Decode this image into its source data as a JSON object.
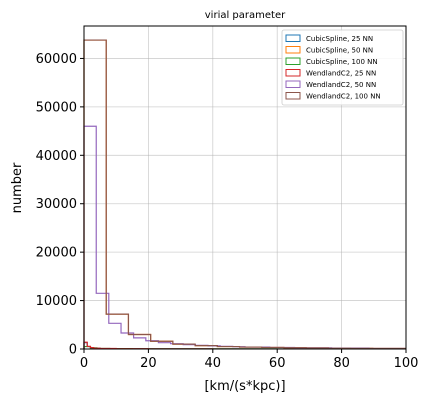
{
  "chart_data": {
    "type": "line",
    "title": "virial parameter",
    "xlabel": "[km/(s*kpc)]",
    "ylabel": "number",
    "xlim": [
      0,
      100
    ],
    "ylim": [
      0,
      66700
    ],
    "xticks": [
      0,
      20,
      40,
      60,
      80,
      100
    ],
    "yticks": [
      0,
      10000,
      20000,
      30000,
      40000,
      50000,
      60000
    ],
    "grid": true,
    "legend_position": "top-right",
    "series": [
      {
        "name": "CubicSpline, 25 NN",
        "color": "#1f77b4",
        "edges": [
          0,
          1,
          2,
          3,
          5,
          10,
          20,
          40,
          70,
          100
        ],
        "counts": [
          1300,
          500,
          250,
          150,
          90,
          50,
          30,
          15,
          8
        ]
      },
      {
        "name": "CubicSpline, 50 NN",
        "color": "#ff7f0e",
        "edges": [
          0,
          6.9,
          13.8,
          20.7,
          27.6,
          34.5,
          41.4,
          48.3,
          55.2,
          62.1,
          69,
          75.9,
          82.8,
          89.7,
          100
        ],
        "counts": [
          63800,
          7200,
          3000,
          1600,
          1000,
          700,
          500,
          400,
          320,
          260,
          210,
          170,
          140,
          110
        ]
      },
      {
        "name": "CubicSpline, 100 NN",
        "color": "#2ca02c",
        "edges": [
          0,
          2,
          4,
          8,
          15,
          30,
          60,
          100
        ],
        "counts": [
          500,
          250,
          120,
          70,
          40,
          20,
          10
        ]
      },
      {
        "name": "WendlandC2, 25 NN",
        "color": "#d62728",
        "edges": [
          0,
          1,
          2,
          3,
          5,
          10,
          20,
          40,
          70,
          100
        ],
        "counts": [
          1400,
          550,
          280,
          160,
          100,
          55,
          30,
          15,
          8
        ]
      },
      {
        "name": "WendlandC2, 50 NN",
        "color": "#9467bd",
        "edges": [
          0,
          3.8,
          7.7,
          11.5,
          15.4,
          19.2,
          23.1,
          26.9,
          30.8,
          34.6,
          38.5,
          42.3,
          46.2,
          50,
          57.7,
          65.4,
          76.9,
          88.5,
          100
        ],
        "counts": [
          46000,
          11500,
          5300,
          3300,
          2300,
          1700,
          1300,
          1100,
          900,
          750,
          650,
          550,
          480,
          400,
          320,
          250,
          180,
          120
        ]
      },
      {
        "name": "WendlandC2, 100 NN",
        "color": "#8c564b",
        "edges": [
          0,
          6.9,
          13.8,
          20.7,
          27.6,
          34.5,
          41.4,
          48.3,
          55.2,
          62.1,
          69,
          75.9,
          82.8,
          89.7,
          100
        ],
        "counts": [
          63800,
          7200,
          3000,
          1600,
          1000,
          700,
          500,
          400,
          320,
          260,
          210,
          170,
          140,
          110
        ]
      }
    ]
  }
}
